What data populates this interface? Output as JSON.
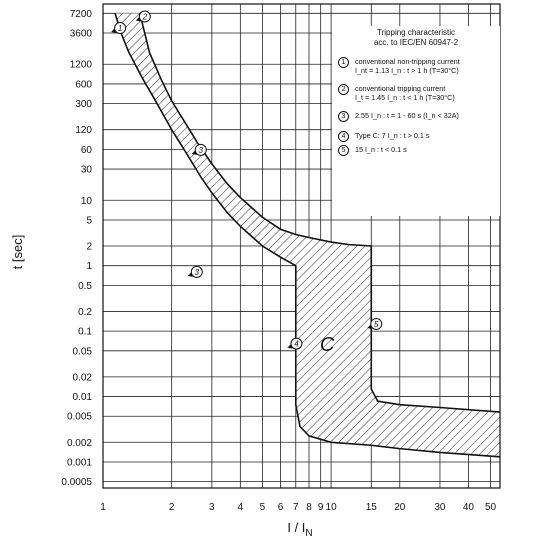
{
  "chart_data": {
    "type": "area",
    "xlabel": "I / I",
    "xlabel_sub": "N",
    "ylabel": "t [sec]",
    "x_scale": "log",
    "y_scale": "log",
    "xlim": [
      1,
      55
    ],
    "ylim": [
      0.0004,
      10000
    ],
    "grid": true,
    "x_ticks": [
      1,
      2,
      3,
      4,
      5,
      6,
      7,
      8,
      9,
      10,
      15,
      20,
      30,
      40,
      50
    ],
    "x_tick_labels": [
      "1",
      "2",
      "3",
      "4",
      "5",
      "6",
      "7",
      "8",
      "9",
      "10",
      "15",
      "20",
      "30",
      "40",
      "50"
    ],
    "y_ticks": [
      7200,
      3600,
      1200,
      600,
      300,
      120,
      60,
      30,
      10,
      5,
      2,
      1,
      0.5,
      0.2,
      0.1,
      0.05,
      0.02,
      0.01,
      0.005,
      0.002,
      0.001,
      0.0005
    ],
    "y_tick_labels": [
      "7200",
      "3600",
      "1200",
      "600",
      "300",
      "120",
      "60",
      "30",
      "10",
      "5",
      "2",
      "1",
      "0.5",
      "0.2",
      "0.1",
      "0.05",
      "0.02",
      "0.01",
      "0.005",
      "0.002",
      "0.001",
      "0.0005"
    ],
    "series": [
      {
        "role": "band-upper",
        "x": [
          1.45,
          1.6,
          1.8,
          2.0,
          2.3,
          2.6,
          3.0,
          3.5,
          4.0,
          5.0,
          6.0,
          7.0,
          8.0,
          10.0,
          12.0,
          15.0,
          15.0,
          16.0,
          20.0,
          30.0,
          55.0
        ],
        "y": [
          7200,
          1800,
          700,
          330,
          150,
          75,
          36,
          18,
          11,
          5.5,
          3.6,
          3.0,
          2.7,
          2.3,
          2.1,
          2.0,
          0.013,
          0.0085,
          0.0075,
          0.0068,
          0.0058
        ]
      },
      {
        "role": "band-lower",
        "x": [
          1.13,
          1.2,
          1.3,
          1.5,
          1.7,
          2.0,
          2.3,
          2.7,
          3.0,
          3.5,
          4.0,
          5.0,
          6.0,
          7.0,
          7.0,
          7.3,
          8.0,
          10.0,
          15.0,
          20.0,
          30.0,
          55.0
        ],
        "y": [
          7200,
          3600,
          1800,
          700,
          330,
          120,
          55,
          22,
          13,
          6.5,
          4.0,
          2.0,
          1.35,
          1.0,
          0.0075,
          0.0035,
          0.0025,
          0.002,
          0.0018,
          0.0016,
          0.0014,
          0.0012
        ]
      }
    ],
    "markers": [
      {
        "label": "1",
        "x": 1.13,
        "y": 4000
      },
      {
        "label": "2",
        "x": 1.45,
        "y": 6000
      },
      {
        "label": "3",
        "x": 2.55,
        "y": 55
      },
      {
        "label": "3",
        "x": 2.45,
        "y": 0.75
      },
      {
        "label": "4",
        "x": 6.7,
        "y": 0.06
      },
      {
        "label": "5",
        "x": 15.0,
        "y": 0.12
      }
    ],
    "curve_letter": "C",
    "legend": {
      "title_lines": [
        "Tripping characteristic",
        "acc. to IEC/EN 60947-2"
      ],
      "items": [
        {
          "num": "1",
          "lines": [
            "conventional non-tripping current",
            "I_nt = 1.13 I_n : t > 1 h   (T=30°C)"
          ]
        },
        {
          "num": "2",
          "lines": [
            "conventional tripping current",
            "I_t = 1.45 I_n : t < 1 h   (T=30°C)"
          ]
        },
        {
          "num": "3",
          "lines": [
            "2.55 I_n : t = 1 - 60 s (I_n < 32A)"
          ]
        },
        {
          "num": "4",
          "lines": [
            "Type C: 7 I_n : t > 0.1 s"
          ]
        },
        {
          "num": "5",
          "lines": [
            "15 I_n : t < 0.1 s"
          ]
        }
      ]
    }
  }
}
